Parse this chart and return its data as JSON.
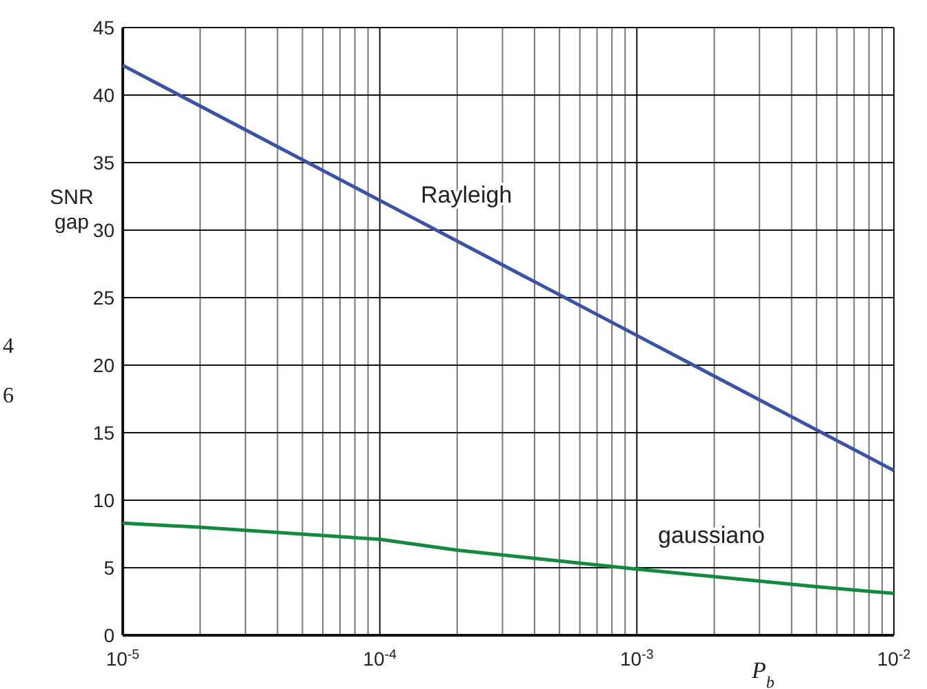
{
  "chart_data": {
    "type": "line",
    "xlabel": "P$_{b}$",
    "ylabel": "SNR gap",
    "log": "x",
    "grid": true,
    "xlim": [
      1e-05,
      0.01
    ],
    "ylim": [
      0,
      45
    ],
    "xticks": [
      {
        "value": 1e-05,
        "label": "10$^{-5}$"
      },
      {
        "value": 2e-05,
        "label": null
      },
      {
        "value": 3e-05,
        "label": null
      },
      {
        "value": 4e-05,
        "label": null
      },
      {
        "value": 5e-05,
        "label": null
      },
      {
        "value": 6e-05,
        "label": null
      },
      {
        "value": 7e-05,
        "label": null
      },
      {
        "value": 8e-05,
        "label": null
      },
      {
        "value": 9e-05,
        "label": null
      },
      {
        "value": 0.0001,
        "label": "10$^{-4}$"
      },
      {
        "value": 0.0002,
        "label": null
      },
      {
        "value": 0.0003,
        "label": null
      },
      {
        "value": 0.0004,
        "label": null
      },
      {
        "value": 0.0005,
        "label": null
      },
      {
        "value": 0.0006,
        "label": null
      },
      {
        "value": 0.0007,
        "label": null
      },
      {
        "value": 0.0008,
        "label": null
      },
      {
        "value": 0.0009,
        "label": null
      },
      {
        "value": 0.001,
        "label": "10$^{-3}$"
      },
      {
        "value": 0.002,
        "label": null
      },
      {
        "value": 0.003,
        "label": null
      },
      {
        "value": 0.004,
        "label": null
      },
      {
        "value": 0.005,
        "label": null
      },
      {
        "value": 0.006,
        "label": null
      },
      {
        "value": 0.007,
        "label": null
      },
      {
        "value": 0.008,
        "label": null
      },
      {
        "value": 0.009,
        "label": null
      },
      {
        "value": 0.01,
        "label": "10$^{-2}$"
      }
    ],
    "yticks": [
      0,
      5,
      10,
      15,
      20,
      25,
      30,
      35,
      40,
      45
    ],
    "series": [
      {
        "name": "Rayleigh",
        "color": "#3a52a8",
        "x": [
          1e-05,
          0.0001,
          0.001,
          0.01
        ],
        "values": [
          42.2,
          32.2,
          22.2,
          12.2
        ]
      },
      {
        "name": "gaussiano",
        "color": "#138a3e",
        "x": [
          1e-05,
          2e-05,
          0.0001,
          0.0002,
          0.001,
          0.005,
          0.01
        ],
        "values": [
          8.3,
          8.0,
          7.1,
          6.3,
          4.9,
          3.6,
          3.1
        ]
      }
    ],
    "annotations": [
      "4",
      "6"
    ]
  }
}
